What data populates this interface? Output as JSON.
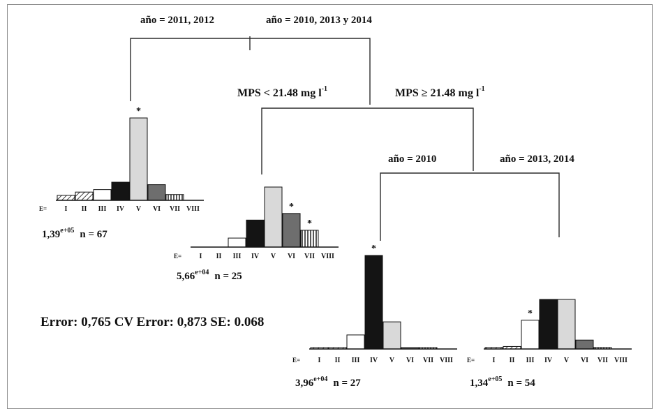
{
  "splits": {
    "root_left": "año = 2011, 2012",
    "root_right": "año = 2010, 2013 y 2014",
    "mps_left": "MPS < 21.48 mg l",
    "mps_right": "MPS ≥ 21.48 mg l",
    "mps_unit_sup": "-1",
    "anio_left": "año = 2010",
    "anio_right": "año = 2013, 2014"
  },
  "error_line": "Error: 0,765 CV Error: 0,873 SE: 0.068",
  "category_prefix": "E=",
  "categories": [
    "I",
    "II",
    "III",
    "IV",
    "V",
    "VI",
    "VII",
    "VIII"
  ],
  "fills": {
    "I": "hatch-diag",
    "II": "hatch-diag",
    "III": "#ffffff",
    "IV": "#141414",
    "V": "#d9d9d9",
    "VI": "#6e6e6e",
    "VII": "hatch-vert",
    "VIII": "#ffffff"
  },
  "chart_data": [
    {
      "type": "bar",
      "node": "leaf-1",
      "categories": [
        "I",
        "II",
        "III",
        "IV",
        "V",
        "VI",
        "VII",
        "VIII"
      ],
      "values": [
        0.06,
        0.1,
        0.13,
        0.22,
        1.0,
        0.19,
        0.07,
        0.0
      ],
      "significant": [
        "V"
      ],
      "mean_base": "1,39",
      "mean_exp": "e+05",
      "n": "n = 67"
    },
    {
      "type": "bar",
      "node": "leaf-2",
      "categories": [
        "I",
        "II",
        "III",
        "IV",
        "V",
        "VI",
        "VII",
        "VIII"
      ],
      "values": [
        0.0,
        0.0,
        0.15,
        0.45,
        1.0,
        0.56,
        0.28,
        0.0
      ],
      "significant": [
        "VI",
        "VII"
      ],
      "mean_base": "5,66",
      "mean_exp": "e+04",
      "n": "n = 25"
    },
    {
      "type": "bar",
      "node": "leaf-3",
      "categories": [
        "I",
        "II",
        "III",
        "IV",
        "V",
        "VI",
        "VII",
        "VIII"
      ],
      "values": [
        0.01,
        0.01,
        0.15,
        1.0,
        0.29,
        0.01,
        0.01,
        0.0
      ],
      "significant": [
        "IV"
      ],
      "mean_base": "3,96",
      "mean_exp": "e+04",
      "n": "n = 27"
    },
    {
      "type": "bar",
      "node": "leaf-4",
      "categories": [
        "I",
        "II",
        "III",
        "IV",
        "V",
        "VI",
        "VII",
        "VIII"
      ],
      "values": [
        0.03,
        0.05,
        0.58,
        1.0,
        1.0,
        0.18,
        0.03,
        0.0
      ],
      "significant": [
        "III"
      ],
      "mean_base": "1,34",
      "mean_exp": "e+05",
      "n": "n = 54"
    }
  ]
}
